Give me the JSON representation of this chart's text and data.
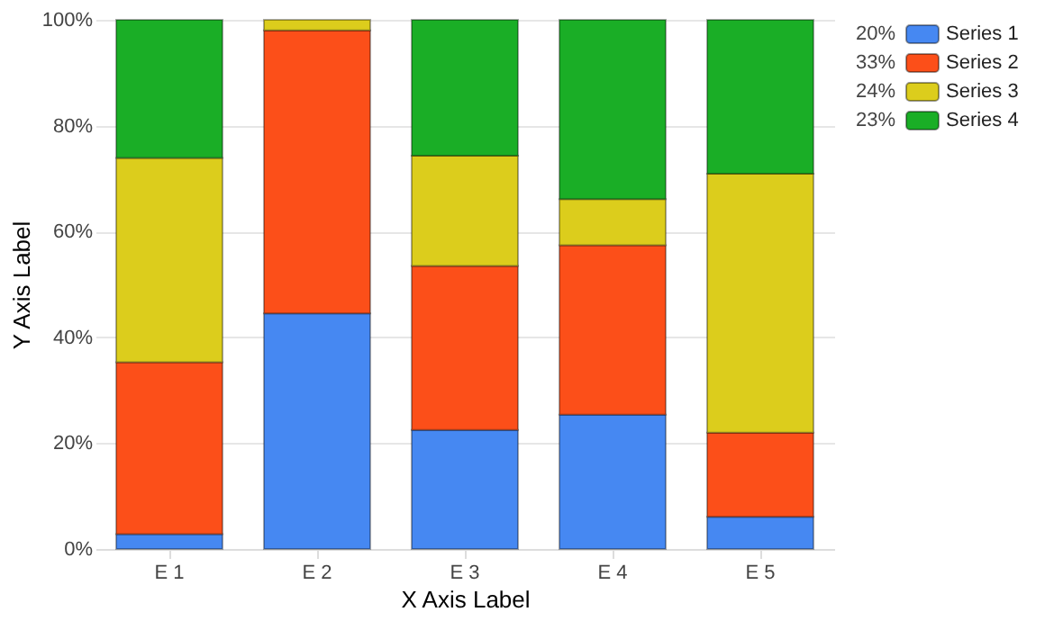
{
  "chart_data": {
    "type": "bar",
    "stacked": true,
    "xlabel": "X Axis Label",
    "ylabel": "Y Axis Label",
    "categories": [
      "E 1",
      "E 2",
      "E 3",
      "E 4",
      "E 5"
    ],
    "series": [
      {
        "name": "Series 1",
        "color": "#4688f2",
        "values": [
          2.8,
          44.5,
          22.5,
          25.4,
          6.1
        ]
      },
      {
        "name": "Series 2",
        "color": "#fc4f19",
        "values": [
          32.5,
          53.5,
          31,
          32,
          15.9
        ]
      },
      {
        "name": "Series 3",
        "color": "#dccd1c",
        "values": [
          38.6,
          2.0,
          20.8,
          8.7,
          48.9
        ]
      },
      {
        "name": "Series 4",
        "color": "#1aae26",
        "values": [
          26.1,
          null,
          25.7,
          33.9,
          29.1
        ]
      }
    ],
    "ylim": [
      0,
      100
    ],
    "yticks": [
      {
        "value": 0,
        "label": "0%"
      },
      {
        "value": 20,
        "label": "20%"
      },
      {
        "value": 40,
        "label": "40%"
      },
      {
        "value": 60,
        "label": "60%"
      },
      {
        "value": 80,
        "label": "80%"
      },
      {
        "value": 100,
        "label": "100%"
      }
    ],
    "annotations": [
      "20%",
      "33%",
      "24%",
      "23%"
    ],
    "grid": "y",
    "legend": "top right"
  }
}
